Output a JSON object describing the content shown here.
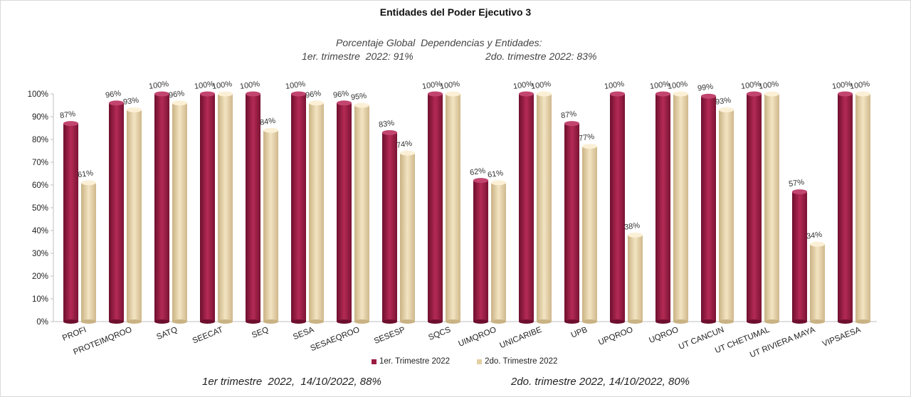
{
  "title": "Entidades del Poder Ejecutivo 3",
  "summary": {
    "line1": "Porcentaje Global  Dependencias y Entidades:",
    "q1": "1er. trimestre  2022: 91%",
    "q2": "2do. trimestre 2022: 83%"
  },
  "footer": {
    "left": "1er trimestre  2022,  14/10/2022, 88%",
    "right": "2do. trimestre 2022, 14/10/2022, 80%"
  },
  "legend": {
    "s1": "1er. Trimestre 2022",
    "s2": "2do. Trimestre 2022"
  },
  "colors": {
    "s1": "#9b1b42",
    "s2": "#e3cfa2"
  },
  "chart_data": {
    "type": "bar",
    "title": "Entidades del Poder Ejecutivo 3",
    "ylim": [
      0,
      100
    ],
    "yticks": [
      "0%",
      "10%",
      "20%",
      "30%",
      "40%",
      "50%",
      "60%",
      "70%",
      "80%",
      "90%",
      "100%"
    ],
    "grid": false,
    "legend_position": "bottom",
    "categories": [
      "PROFI",
      "PROTEIMQROO",
      "SATQ",
      "SEECAT",
      "SEQ",
      "SESA",
      "SESAEQROO",
      "SESESP",
      "SQCS",
      "UIMQROO",
      "UNICARIBE",
      "UPB",
      "UPQROO",
      "UQROO",
      "UT CANCUN",
      "UT CHETUMAL",
      "UT RIVIERA MAYA",
      "VIPSAESA"
    ],
    "series": [
      {
        "name": "1er. Trimestre 2022",
        "values": [
          87,
          96,
          100,
          100,
          100,
          100,
          96,
          83,
          100,
          62,
          100,
          87,
          100,
          100,
          99,
          100,
          57,
          100
        ]
      },
      {
        "name": "2do. Trimestre 2022",
        "values": [
          61,
          93,
          96,
          100,
          84,
          96,
          95,
          74,
          100,
          61,
          100,
          77,
          38,
          100,
          93,
          100,
          34,
          100
        ]
      }
    ]
  }
}
